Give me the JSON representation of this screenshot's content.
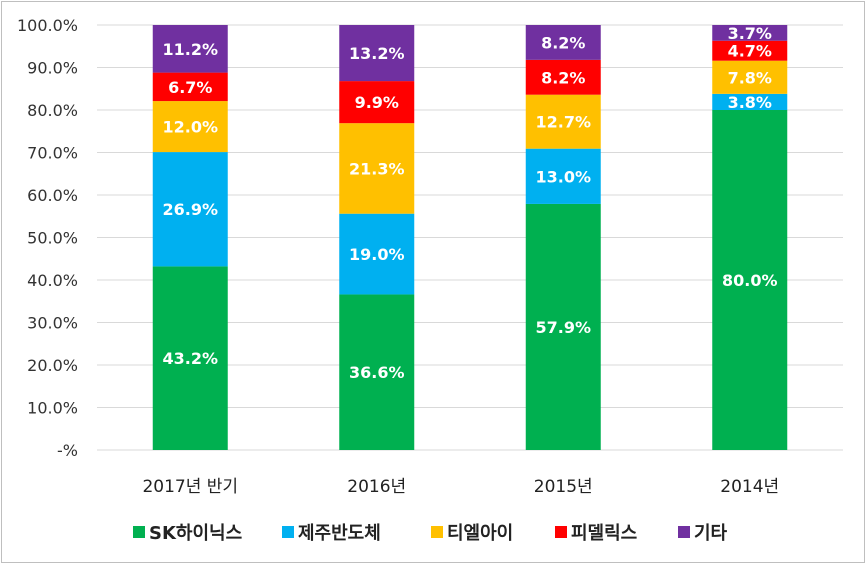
{
  "chart_data": {
    "type": "bar",
    "stacked": true,
    "percent": true,
    "categories": [
      "2017년 반기",
      "2016년",
      "2015년",
      "2014년"
    ],
    "series": [
      {
        "name": "SK하이닉스",
        "color": "#00b050",
        "values": [
          43.2,
          36.6,
          57.9,
          80.0
        ],
        "labels": [
          "43.2%",
          "36.6%",
          "57.9%",
          "80.0%"
        ]
      },
      {
        "name": "제주반도체",
        "color": "#00b0f0",
        "values": [
          26.9,
          19.0,
          13.0,
          3.8
        ],
        "labels": [
          "26.9%",
          "19.0%",
          "13.0%",
          "3.8%"
        ]
      },
      {
        "name": "티엘아이",
        "color": "#ffc000",
        "values": [
          12.0,
          21.3,
          12.7,
          7.8
        ],
        "labels": [
          "12.0%",
          "21.3%",
          "12.7%",
          "7.8%"
        ]
      },
      {
        "name": "피델릭스",
        "color": "#ff0000",
        "values": [
          6.7,
          9.9,
          8.2,
          4.7
        ],
        "labels": [
          "6.7%",
          "9.9%",
          "8.2%",
          "4.7%"
        ]
      },
      {
        "name": "기타",
        "color": "#7030a0",
        "values": [
          11.2,
          13.2,
          8.2,
          3.7
        ],
        "labels": [
          "11.2%",
          "13.2%",
          "8.2%",
          "3.7%"
        ]
      }
    ],
    "yticks": [
      "-%",
      "10.0%",
      "20.0%",
      "30.0%",
      "40.0%",
      "50.0%",
      "60.0%",
      "70.0%",
      "80.0%",
      "90.0%",
      "100.0%"
    ],
    "ylim": [
      0,
      100
    ],
    "grid": true,
    "legend_position": "bottom"
  }
}
